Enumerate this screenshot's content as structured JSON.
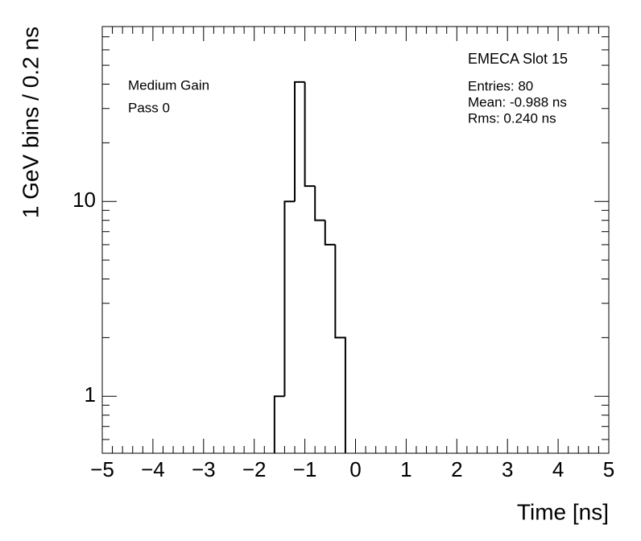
{
  "chart_data": {
    "type": "histogram",
    "x_label": "Time [ns]",
    "y_label": "1 GeV bins / 0.2 ns",
    "annotations": [
      "Medium Gain",
      "Pass 0"
    ],
    "stats_title": "EMECA Slot 15",
    "stats": [
      "Entries: 80",
      "Mean: -0.988 ns",
      "Rms: 0.240 ns"
    ],
    "bins": [
      -5,
      -4.8,
      -4.6,
      -4.4,
      -4.2,
      -4,
      -3.8,
      -3.6,
      -3.4,
      -3.2,
      -3,
      -2.8,
      -2.6,
      -2.4,
      -2.2,
      -2,
      -1.8,
      -1.6,
      -1.4,
      -1.2,
      -1,
      -0.8,
      -0.6,
      -0.4,
      -0.2,
      0,
      0.2,
      0.4,
      0.6,
      0.8,
      1,
      1.2,
      1.4,
      1.6,
      1.8,
      2,
      2.2,
      2.4,
      2.6,
      2.8,
      3,
      3.2,
      3.4,
      3.6,
      3.8,
      4,
      4.2,
      4.4,
      4.6,
      4.8,
      5
    ],
    "values": [
      0,
      0,
      0,
      0,
      0,
      0,
      0,
      0,
      0,
      0,
      0,
      0,
      0,
      0,
      0,
      0,
      0,
      1,
      10,
      41,
      12,
      8,
      6,
      2,
      0,
      0,
      0,
      0,
      0,
      0,
      0,
      0,
      0,
      0,
      0,
      0,
      0,
      0,
      0,
      0,
      0,
      0,
      0,
      0,
      0,
      0,
      0,
      0,
      0,
      0
    ],
    "color": "#000000",
    "xlim": [
      -5,
      5
    ],
    "xticks": [
      {
        "value": -5,
        "label": "−5"
      },
      {
        "value": -4,
        "label": "−4"
      },
      {
        "value": -3,
        "label": "−3"
      },
      {
        "value": -2,
        "label": "−2"
      },
      {
        "value": -1,
        "label": "−1"
      },
      0,
      1,
      2,
      3,
      4,
      5
    ],
    "ylim": [
      0.51,
      79
    ],
    "yticks": [
      1,
      10
    ],
    "log_y": true
  }
}
